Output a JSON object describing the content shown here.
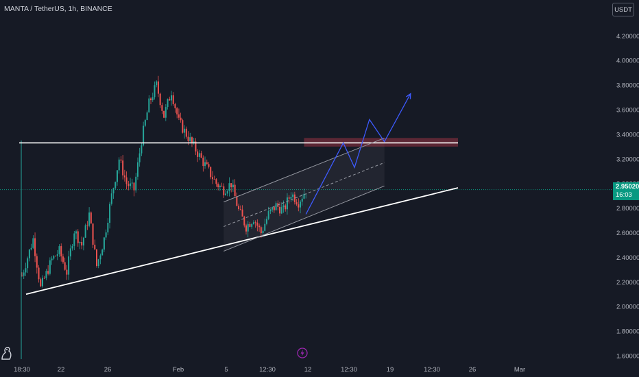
{
  "header": {
    "title": "MANTA / TetherUS, 1h, BINANCE"
  },
  "currency_button": {
    "label": "USDT"
  },
  "price_tag": {
    "price": "2.95020",
    "countdown": "16:03"
  },
  "icons": {
    "flash": "lightning-icon",
    "logo": "tradingview-logo-icon"
  },
  "colors": {
    "background": "#161a25",
    "up": "#26a69a",
    "down": "#ef5350",
    "projection": "#3d5afe",
    "resistance_zone": "#b2374a",
    "last_price": "#089981"
  },
  "chart_data": {
    "type": "candlestick",
    "symbol": "MANTA / TetherUS",
    "interval": "1h",
    "exchange": "BINANCE",
    "last_price": 2.9502,
    "x_tick_labels": [
      "18:30",
      "22",
      "26",
      "Feb",
      "5",
      "12:30",
      "12",
      "12:30",
      "19",
      "12:30",
      "26",
      "Mar"
    ],
    "y_tick_labels": [
      "4.20000",
      "4.00000",
      "3.80000",
      "3.60000",
      "3.40000",
      "3.20000",
      "3.00000",
      "2.80000",
      "2.60000",
      "2.40000",
      "2.20000",
      "2.00000",
      "1.80000",
      "1.60000"
    ],
    "ylim": [
      1.55,
      4.35
    ],
    "grid": false,
    "price_path": [
      [
        0,
        2.25
      ],
      [
        3,
        2.55
      ],
      [
        5,
        2.15
      ],
      [
        8,
        2.38
      ],
      [
        10,
        2.45
      ],
      [
        12,
        2.28
      ],
      [
        14,
        2.62
      ],
      [
        16,
        2.5
      ],
      [
        18,
        2.75
      ],
      [
        20,
        2.33
      ],
      [
        22,
        2.55
      ],
      [
        24,
        2.9
      ],
      [
        26,
        3.2
      ],
      [
        28,
        3.0
      ],
      [
        30,
        2.95
      ],
      [
        32,
        3.35
      ],
      [
        34,
        3.65
      ],
      [
        36,
        3.8
      ],
      [
        38,
        3.55
      ],
      [
        40,
        3.75
      ],
      [
        42,
        3.5
      ],
      [
        44,
        3.4
      ],
      [
        46,
        3.3
      ],
      [
        48,
        3.2
      ],
      [
        50,
        3.1
      ],
      [
        52,
        3.0
      ],
      [
        54,
        2.95
      ],
      [
        56,
        3.0
      ],
      [
        58,
        2.78
      ],
      [
        60,
        2.65
      ],
      [
        62,
        2.72
      ],
      [
        64,
        2.6
      ],
      [
        66,
        2.75
      ],
      [
        68,
        2.82
      ],
      [
        70,
        2.78
      ],
      [
        72,
        2.92
      ],
      [
        74,
        2.85
      ],
      [
        76,
        2.95
      ]
    ],
    "drawings": {
      "resistance_level": 3.33,
      "resistance_zone": [
        3.3,
        3.37
      ],
      "last_price_line": 2.9502,
      "support_trendline": [
        [
          0,
          2.1
        ],
        [
          110,
          2.95
        ]
      ],
      "ascending_channel": {
        "upper": [
          [
            54,
            2.85
          ],
          [
            97,
            3.37
          ]
        ],
        "lower": [
          [
            54,
            2.45
          ],
          [
            97,
            2.98
          ]
        ],
        "mid": [
          [
            54,
            2.65
          ],
          [
            97,
            3.17
          ]
        ]
      },
      "projection_path": [
        [
          76,
          2.75
        ],
        [
          86,
          3.33
        ],
        [
          89,
          3.13
        ],
        [
          93,
          3.52
        ],
        [
          97,
          3.34
        ],
        [
          104,
          3.73
        ]
      ]
    }
  }
}
